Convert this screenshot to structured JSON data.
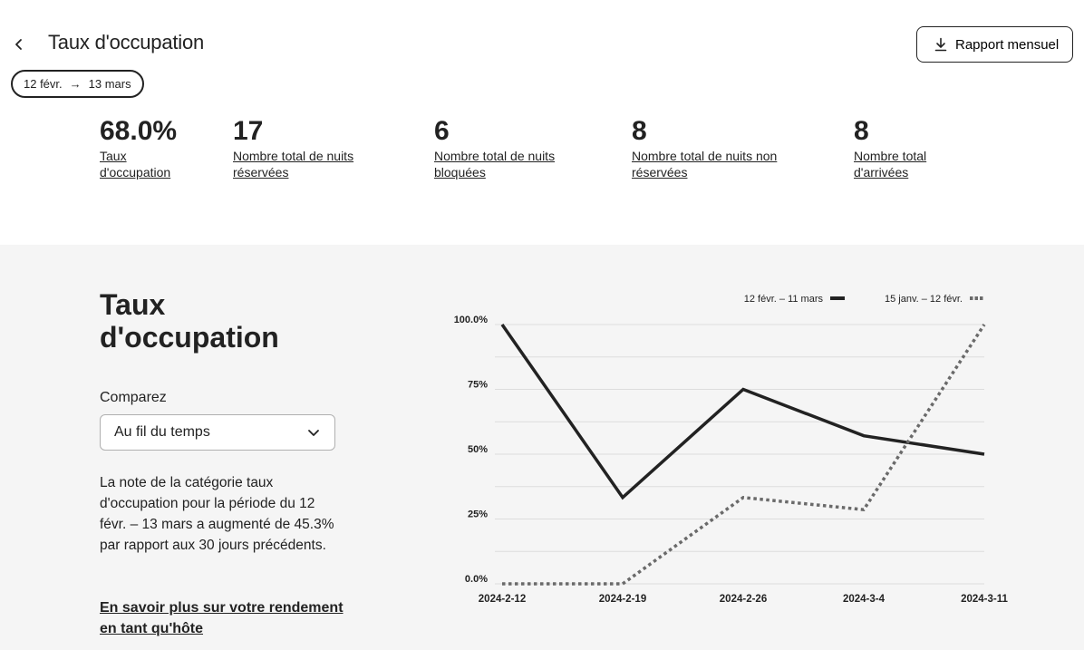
{
  "header": {
    "title": "Taux d'occupation",
    "report_button": "Rapport mensuel",
    "date_start": "12 févr.",
    "date_end": "13 mars"
  },
  "stats": [
    {
      "value": "68.0%",
      "label_line1": "Taux",
      "label_line2": "d'occupation"
    },
    {
      "value": "17",
      "label_line1": "Nombre total de nuits",
      "label_line2": "réservées"
    },
    {
      "value": "6",
      "label_line1": "Nombre total de nuits",
      "label_line2": "bloquées"
    },
    {
      "value": "8",
      "label_line1": "Nombre total de nuits non",
      "label_line2": "réservées"
    },
    {
      "value": "8",
      "label_line1": "Nombre total",
      "label_line2": "d'arrivées"
    }
  ],
  "panel": {
    "title_line1": "Taux",
    "title_line2": "d'occupation",
    "compare_label": "Comparez",
    "select_value": "Au fil du temps",
    "description": "La note de la catégorie taux d'occupation pour la période du 12 févr. – 13 mars a augmenté de 45.3% par rapport aux 30 jours précédents.",
    "learn_more": "En savoir plus sur votre rendement en tant qu'hôte"
  },
  "chart_data": {
    "type": "line",
    "x": [
      "2024-2-12",
      "2024-2-19",
      "2024-2-26",
      "2024-3-4",
      "2024-3-11"
    ],
    "y_ticks": [
      "0.0%",
      "25%",
      "50%",
      "75%",
      "100.0%"
    ],
    "ylim": [
      0,
      100
    ],
    "grid": true,
    "legend_position": "top-right",
    "series": [
      {
        "name": "12 févr. – 11 mars",
        "style": "solid",
        "color": "#222222",
        "values": [
          100,
          33.3,
          75,
          57.1,
          50
        ]
      },
      {
        "name": "15 janv. – 12 févr.",
        "style": "dotted",
        "color": "#6a6a6a",
        "values": [
          0,
          0,
          33.3,
          28.6,
          100
        ]
      }
    ]
  }
}
